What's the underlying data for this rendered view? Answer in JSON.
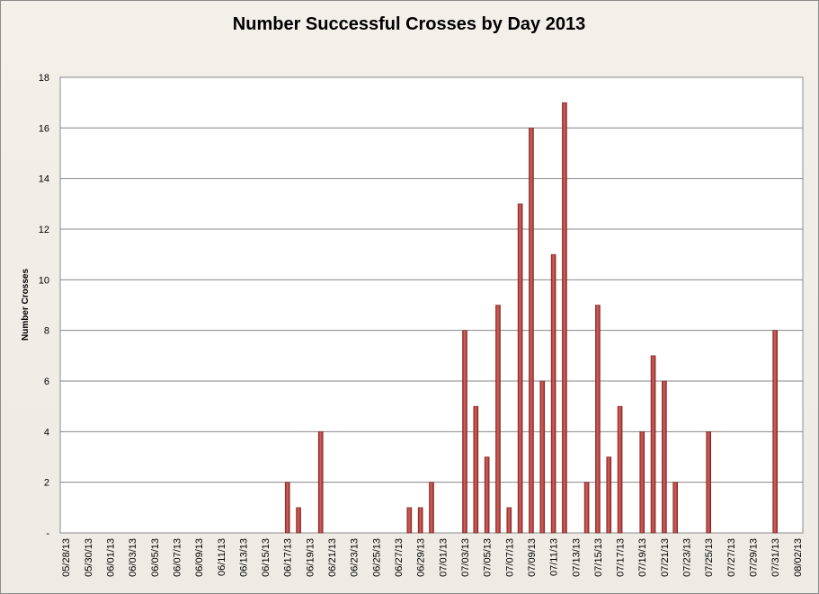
{
  "chart_data": {
    "type": "bar",
    "title": "Number Successful Crosses by Day 2013",
    "xlabel": "",
    "ylabel": "Number Crosses",
    "ylim": [
      0,
      18
    ],
    "y_ticks": [
      "-",
      "2",
      "4",
      "6",
      "8",
      "10",
      "12",
      "14",
      "16",
      "18"
    ],
    "grid": true,
    "legend": "none",
    "x_start": "05/28/13",
    "x_end": "08/02/13",
    "x_tick_labels": [
      "05/28/13",
      "05/30/13",
      "06/01/13",
      "06/03/13",
      "06/05/13",
      "06/07/13",
      "06/09/13",
      "06/11/13",
      "06/13/13",
      "06/15/13",
      "06/17/13",
      "06/19/13",
      "06/21/13",
      "06/23/13",
      "06/25/13",
      "06/27/13",
      "06/29/13",
      "07/01/13",
      "07/03/13",
      "07/05/13",
      "07/07/13",
      "07/09/13",
      "07/11/13",
      "07/13/13",
      "07/15/13",
      "07/17/13",
      "07/19/13",
      "07/21/13",
      "07/23/13",
      "07/25/13",
      "07/27/13",
      "07/29/13",
      "07/31/13",
      "08/02/13"
    ],
    "series": [
      {
        "color": "#c0504d",
        "points": [
          {
            "x": "06/17/13",
            "y": 2
          },
          {
            "x": "06/18/13",
            "y": 1
          },
          {
            "x": "06/20/13",
            "y": 4
          },
          {
            "x": "06/28/13",
            "y": 1
          },
          {
            "x": "06/29/13",
            "y": 1
          },
          {
            "x": "06/30/13",
            "y": 2
          },
          {
            "x": "07/03/13",
            "y": 8
          },
          {
            "x": "07/04/13",
            "y": 5
          },
          {
            "x": "07/05/13",
            "y": 3
          },
          {
            "x": "07/06/13",
            "y": 9
          },
          {
            "x": "07/07/13",
            "y": 1
          },
          {
            "x": "07/08/13",
            "y": 13
          },
          {
            "x": "07/09/13",
            "y": 16
          },
          {
            "x": "07/10/13",
            "y": 6
          },
          {
            "x": "07/11/13",
            "y": 11
          },
          {
            "x": "07/12/13",
            "y": 17
          },
          {
            "x": "07/14/13",
            "y": 2
          },
          {
            "x": "07/15/13",
            "y": 9
          },
          {
            "x": "07/16/13",
            "y": 3
          },
          {
            "x": "07/17/13",
            "y": 5
          },
          {
            "x": "07/19/13",
            "y": 4
          },
          {
            "x": "07/20/13",
            "y": 7
          },
          {
            "x": "07/21/13",
            "y": 6
          },
          {
            "x": "07/22/13",
            "y": 2
          },
          {
            "x": "07/25/13",
            "y": 4
          },
          {
            "x": "07/31/13",
            "y": 8
          }
        ]
      }
    ]
  }
}
